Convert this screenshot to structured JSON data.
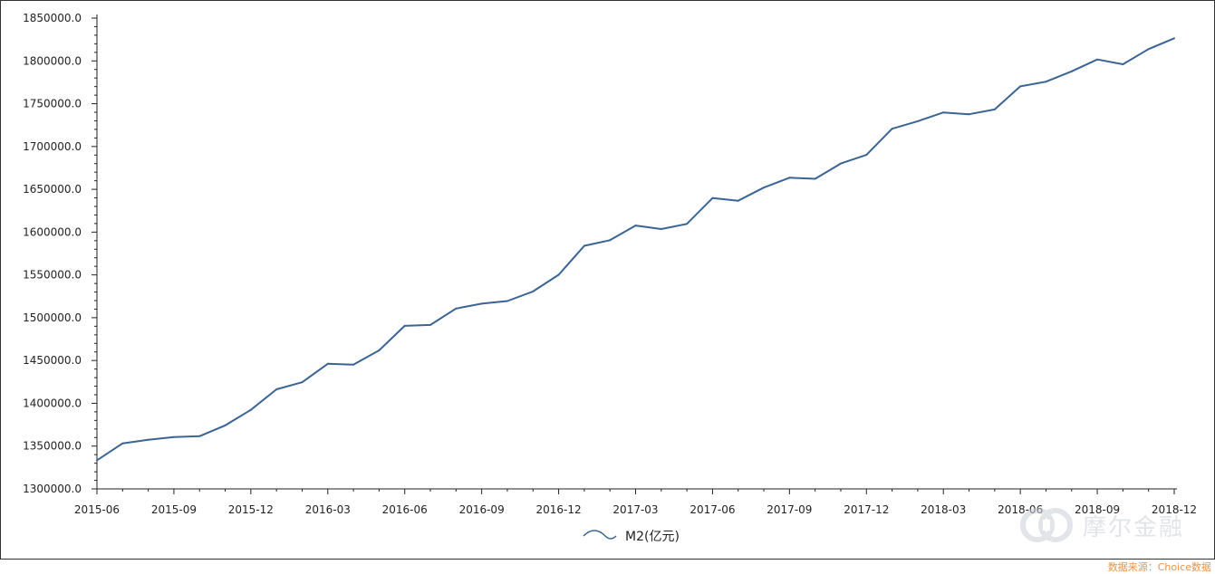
{
  "chart_data": {
    "type": "line",
    "title": "",
    "xlabel": "",
    "ylabel": "",
    "x": [
      "2015-06",
      "2015-07",
      "2015-08",
      "2015-09",
      "2015-10",
      "2015-11",
      "2015-12",
      "2016-01",
      "2016-02",
      "2016-03",
      "2016-04",
      "2016-05",
      "2016-06",
      "2016-07",
      "2016-08",
      "2016-09",
      "2016-10",
      "2016-11",
      "2016-12",
      "2017-01",
      "2017-02",
      "2017-03",
      "2017-04",
      "2017-05",
      "2017-06",
      "2017-07",
      "2017-08",
      "2017-09",
      "2017-10",
      "2017-11",
      "2017-12",
      "2018-01",
      "2018-02",
      "2018-03",
      "2018-04",
      "2018-05",
      "2018-06",
      "2018-07",
      "2018-08",
      "2018-09",
      "2018-10",
      "2018-11",
      "2018-12"
    ],
    "x_tick_labels": [
      "2015-06",
      "2015-09",
      "2015-12",
      "2016-03",
      "2016-06",
      "2016-09",
      "2016-12",
      "2017-03",
      "2017-06",
      "2017-09",
      "2017-12",
      "2018-03",
      "2018-06",
      "2018-09",
      "2018-12"
    ],
    "ylim": [
      1300000,
      1850000
    ],
    "y_tick_labels": [
      "1300000.0",
      "1350000.0",
      "1400000.0",
      "1450000.0",
      "1500000.0",
      "1550000.0",
      "1600000.0",
      "1650000.0",
      "1700000.0",
      "1750000.0",
      "1800000.0",
      "1850000.0"
    ],
    "series": [
      {
        "name": "M2(亿元)",
        "color": "#3b6494",
        "values": [
          1333400,
          1353200,
          1357300,
          1360500,
          1361600,
          1374100,
          1392300,
          1416300,
          1424600,
          1446200,
          1445100,
          1461800,
          1490500,
          1491600,
          1510700,
          1516400,
          1519500,
          1530700,
          1550100,
          1584000,
          1590500,
          1607700,
          1603600,
          1609600,
          1639700,
          1636700,
          1652000,
          1663500,
          1662300,
          1680100,
          1690200,
          1720800,
          1729500,
          1739800,
          1737700,
          1743300,
          1770200,
          1775800,
          1787800,
          1801700,
          1796100,
          1813800,
          1826400
        ]
      }
    ],
    "grid": false,
    "legend_position": "bottom-center"
  },
  "watermark": {
    "text": "摩尔金融",
    "logo_icon": "choice-logo-icon"
  },
  "source_note": "数据来源：Choice数据"
}
